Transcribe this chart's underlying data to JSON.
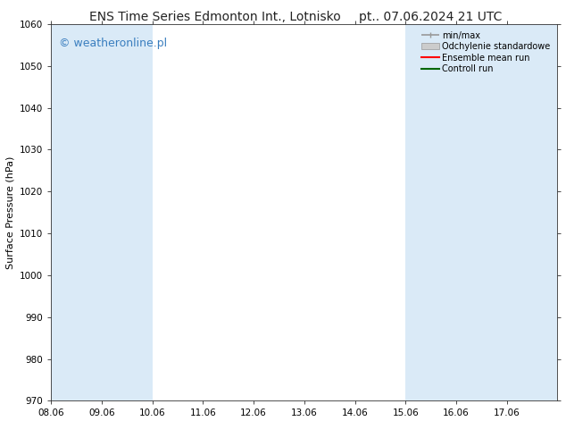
{
  "title_left": "ENS Time Series Edmonton Int., Lotnisko",
  "title_right": "pt.. 07.06.2024 21 UTC",
  "ylabel": "Surface Pressure (hPa)",
  "ylim": [
    970,
    1060
  ],
  "yticks": [
    970,
    980,
    990,
    1000,
    1010,
    1020,
    1030,
    1040,
    1050,
    1060
  ],
  "xlabel_dates": [
    "08.06",
    "09.06",
    "10.06",
    "11.06",
    "12.06",
    "13.06",
    "14.06",
    "15.06",
    "16.06",
    "17.06"
  ],
  "n_cols": 10,
  "shaded_indices": [
    0,
    1,
    7,
    8,
    9
  ],
  "shade_color": "#daeaf7",
  "watermark_text": "© weatheronline.pl",
  "watermark_color": "#3a7ebf",
  "watermark_fontsize": 9,
  "legend_items": [
    {
      "label": "min/max"
    },
    {
      "label": "Odchylenie standardowe"
    },
    {
      "label": "Ensemble mean run"
    },
    {
      "label": "Controll run"
    }
  ],
  "legend_colors": [
    "#aaaaaa",
    "#c0c0c0",
    "#ff0000",
    "#006600"
  ],
  "title_fontsize": 10,
  "axis_label_fontsize": 8,
  "tick_fontsize": 7.5,
  "background_color": "#ffffff"
}
